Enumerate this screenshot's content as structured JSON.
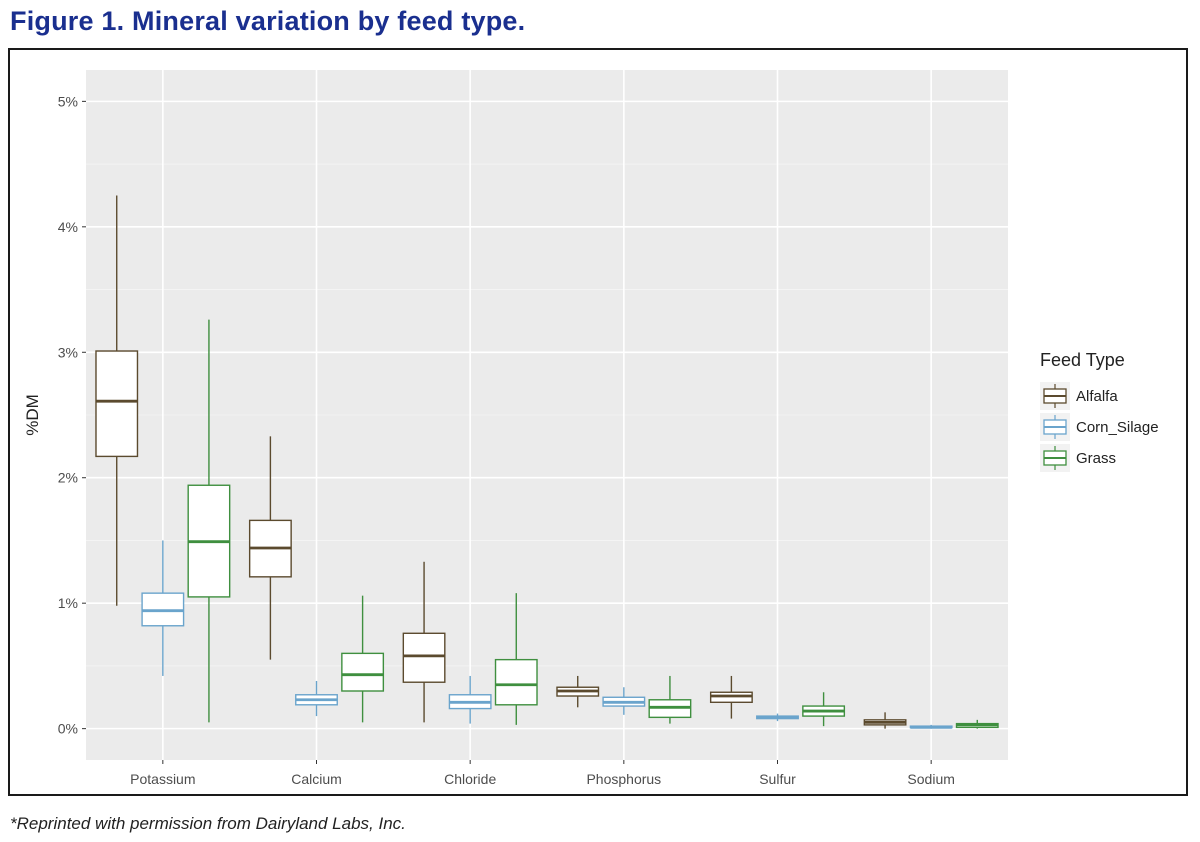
{
  "figure": {
    "title": "Figure 1.  Mineral variation by feed type.",
    "footnote": "*Reprinted with permission from Dairyland Labs, Inc."
  },
  "chart_data": {
    "type": "boxplot",
    "title": "",
    "xlabel": "",
    "ylabel": "%DM",
    "ylim": [
      -0.25,
      5.25
    ],
    "y_ticks": [
      0,
      1,
      2,
      3,
      4,
      5
    ],
    "y_tick_labels": [
      "0%",
      "1%",
      "2%",
      "3%",
      "4%",
      "5%"
    ],
    "grid": true,
    "legend": {
      "title": "Feed Type",
      "position": "right"
    },
    "categories": [
      "Potassium",
      "Calcium",
      "Chloride",
      "Phosphorus",
      "Sulfur",
      "Sodium"
    ],
    "series": [
      {
        "name": "Alfalfa",
        "color": "#5b4a2e",
        "boxes": [
          {
            "min": 0.98,
            "q1": 2.17,
            "median": 2.61,
            "q3": 3.01,
            "max": 4.25
          },
          {
            "min": 0.55,
            "q1": 1.21,
            "median": 1.44,
            "q3": 1.66,
            "max": 2.33
          },
          {
            "min": 0.05,
            "q1": 0.37,
            "median": 0.58,
            "q3": 0.76,
            "max": 1.33
          },
          {
            "min": 0.17,
            "q1": 0.26,
            "median": 0.3,
            "q3": 0.33,
            "max": 0.42
          },
          {
            "min": 0.08,
            "q1": 0.21,
            "median": 0.26,
            "q3": 0.29,
            "max": 0.42
          },
          {
            "min": 0.0,
            "q1": 0.03,
            "median": 0.05,
            "q3": 0.07,
            "max": 0.13
          }
        ]
      },
      {
        "name": "Corn_Silage",
        "color": "#6aa4cc",
        "boxes": [
          {
            "min": 0.42,
            "q1": 0.82,
            "median": 0.94,
            "q3": 1.08,
            "max": 1.5
          },
          {
            "min": 0.1,
            "q1": 0.19,
            "median": 0.23,
            "q3": 0.27,
            "max": 0.38
          },
          {
            "min": 0.04,
            "q1": 0.16,
            "median": 0.21,
            "q3": 0.27,
            "max": 0.42
          },
          {
            "min": 0.11,
            "q1": 0.18,
            "median": 0.21,
            "q3": 0.25,
            "max": 0.33
          },
          {
            "min": 0.06,
            "q1": 0.08,
            "median": 0.09,
            "q3": 0.1,
            "max": 0.12
          },
          {
            "min": 0.0,
            "q1": 0.01,
            "median": 0.01,
            "q3": 0.02,
            "max": 0.03
          }
        ]
      },
      {
        "name": "Grass",
        "color": "#3f8f3f",
        "boxes": [
          {
            "min": 0.05,
            "q1": 1.05,
            "median": 1.49,
            "q3": 1.94,
            "max": 3.26
          },
          {
            "min": 0.05,
            "q1": 0.3,
            "median": 0.43,
            "q3": 0.6,
            "max": 1.06
          },
          {
            "min": 0.03,
            "q1": 0.19,
            "median": 0.35,
            "q3": 0.55,
            "max": 1.08
          },
          {
            "min": 0.04,
            "q1": 0.09,
            "median": 0.17,
            "q3": 0.23,
            "max": 0.42
          },
          {
            "min": 0.02,
            "q1": 0.1,
            "median": 0.14,
            "q3": 0.18,
            "max": 0.29
          },
          {
            "min": 0.0,
            "q1": 0.01,
            "median": 0.03,
            "q3": 0.04,
            "max": 0.07
          }
        ]
      }
    ]
  }
}
